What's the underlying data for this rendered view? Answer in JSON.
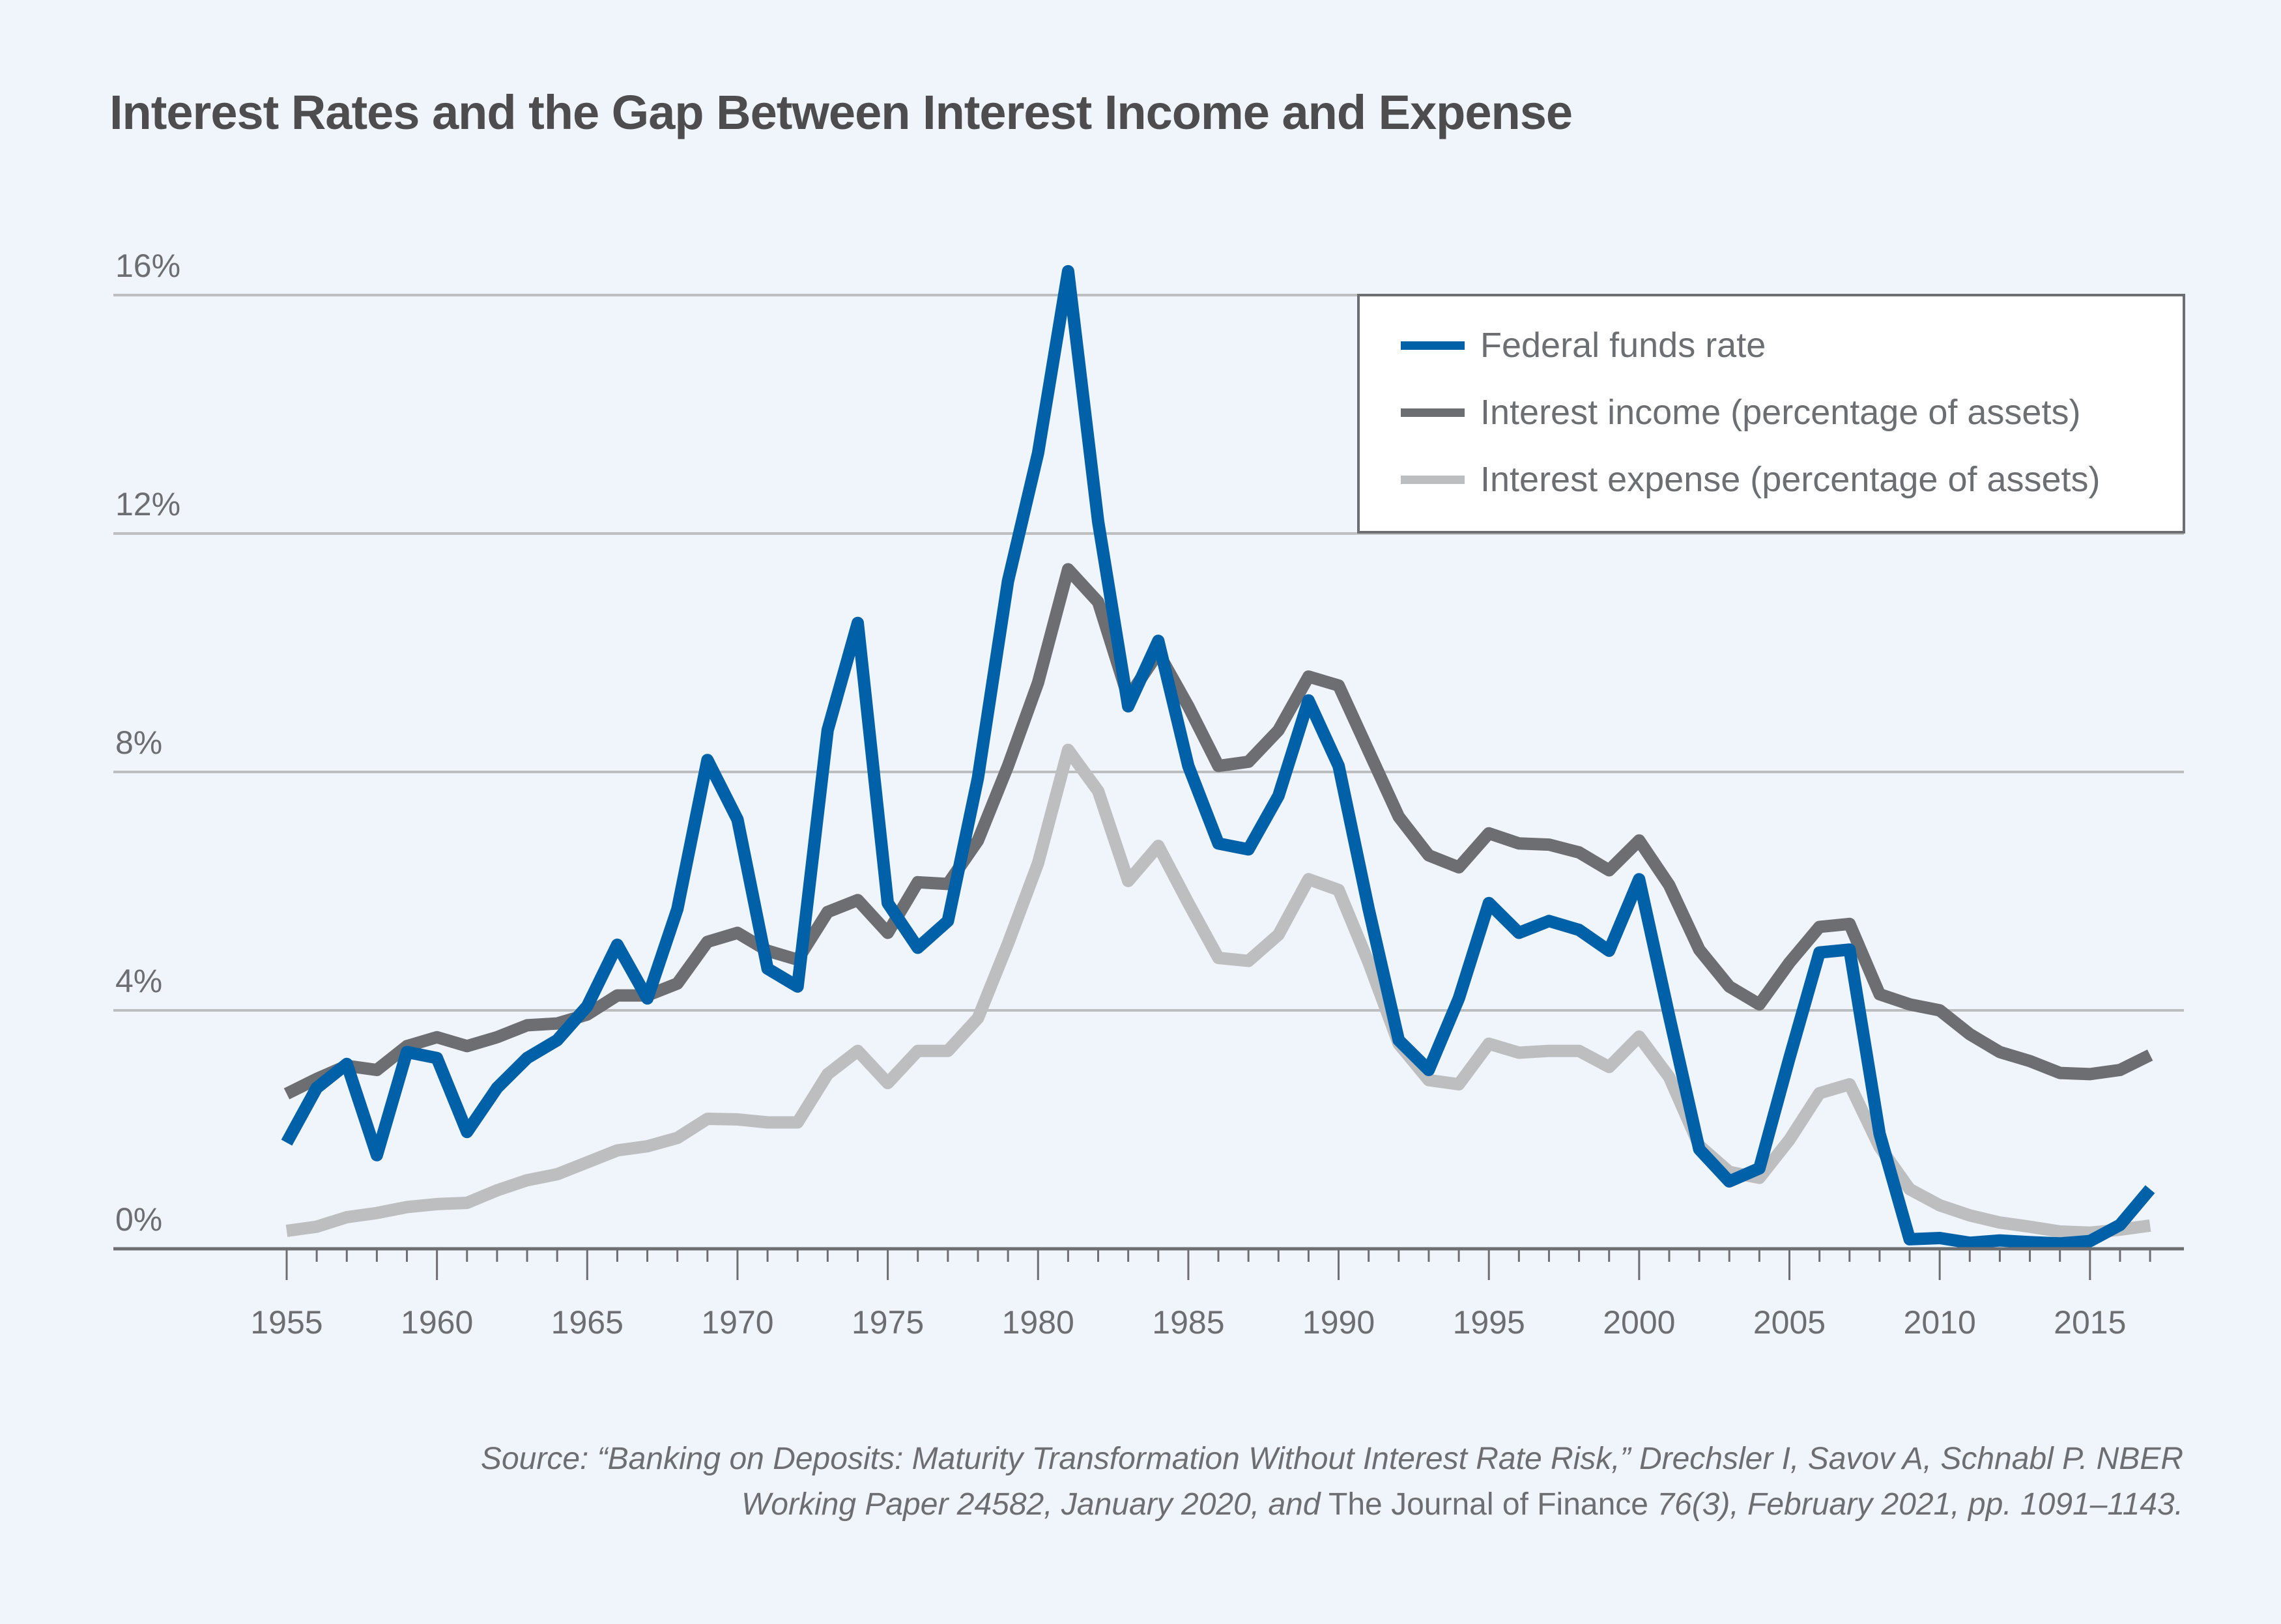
{
  "title": "Interest Rates and the Gap Between Interest Income and Expense",
  "source": {
    "line1": "Source: “Banking on Deposits: Maturity Transformation Without Interest Rate Risk,” Drechsler I, Savov A, Schnabl P. NBER",
    "line2_a": "Working Paper 24582, January 2020, ",
    "line2_and": "and",
    "line2_journal": " The Journal of Finance ",
    "line2_b": "76(3), February 2021, pp. 1091–1143."
  },
  "colors": {
    "background": "#EFF5FA",
    "federal_funds": "#0061A8",
    "income": "#6D6E71",
    "expense": "#BCBEC0",
    "gridline": "#BCBEC0",
    "axis": "#6D6E71",
    "text": "#6D6E71",
    "title": "#4D4D4F"
  },
  "chart_data": {
    "type": "line",
    "title": "Interest Rates and the Gap Between Interest Income and Expense",
    "xlabel": "",
    "ylabel": "",
    "xlim": [
      1955,
      2017
    ],
    "ylim": [
      0,
      16
    ],
    "grid": true,
    "legend_position": "top-right",
    "y_ticks": [
      0,
      4,
      8,
      12,
      16
    ],
    "y_tick_labels": [
      "0%",
      "4%",
      "8%",
      "12%",
      "16%"
    ],
    "x_ticks": [
      1955,
      1960,
      1965,
      1970,
      1975,
      1980,
      1985,
      1990,
      1995,
      2000,
      2005,
      2010,
      2015
    ],
    "x_tick_labels": [
      "1955",
      "1960",
      "1965",
      "1970",
      "1975",
      "1980",
      "1985",
      "1990",
      "1995",
      "2000",
      "2005",
      "2010",
      "2015"
    ],
    "x": [
      1955,
      1956,
      1957,
      1958,
      1959,
      1960,
      1961,
      1962,
      1963,
      1964,
      1965,
      1966,
      1967,
      1968,
      1969,
      1970,
      1971,
      1972,
      1973,
      1974,
      1975,
      1976,
      1977,
      1978,
      1979,
      1980,
      1981,
      1982,
      1983,
      1984,
      1985,
      1986,
      1987,
      1988,
      1989,
      1990,
      1991,
      1992,
      1993,
      1994,
      1995,
      1996,
      1997,
      1998,
      1999,
      2000,
      2001,
      2002,
      2003,
      2004,
      2005,
      2006,
      2007,
      2008,
      2009,
      2010,
      2011,
      2012,
      2013,
      2014,
      2015,
      2016,
      2017
    ],
    "series": [
      {
        "name": "Federal funds rate",
        "color": "#0061A8",
        "values": [
          1.78,
          2.7,
          3.1,
          1.57,
          3.3,
          3.2,
          1.96,
          2.7,
          3.2,
          3.5,
          4.07,
          5.1,
          4.2,
          5.7,
          8.2,
          7.2,
          4.7,
          4.4,
          8.7,
          10.5,
          5.8,
          5.05,
          5.5,
          7.9,
          11.2,
          13.35,
          16.4,
          12.2,
          9.1,
          10.2,
          8.1,
          6.8,
          6.7,
          7.6,
          9.2,
          8.1,
          5.7,
          3.5,
          3.0,
          4.2,
          5.8,
          5.3,
          5.5,
          5.35,
          5.0,
          6.2,
          3.9,
          1.67,
          1.13,
          1.35,
          3.2,
          4.97,
          5.02,
          1.93,
          0.16,
          0.18,
          0.1,
          0.14,
          0.11,
          0.09,
          0.13,
          0.4,
          1.0
        ]
      },
      {
        "name": "Interest income (percentage of assets)",
        "color": "#6D6E71",
        "values": [
          2.6,
          2.85,
          3.07,
          3.0,
          3.4,
          3.55,
          3.4,
          3.55,
          3.75,
          3.78,
          3.93,
          4.25,
          4.25,
          4.45,
          5.15,
          5.3,
          5.0,
          4.85,
          5.65,
          5.85,
          5.3,
          6.15,
          6.12,
          6.85,
          8.1,
          9.5,
          11.4,
          10.85,
          9.25,
          10.0,
          9.1,
          8.1,
          8.17,
          8.7,
          9.6,
          9.45,
          8.35,
          7.25,
          6.6,
          6.4,
          6.97,
          6.8,
          6.78,
          6.65,
          6.35,
          6.85,
          6.1,
          5.02,
          4.4,
          4.1,
          4.8,
          5.4,
          5.45,
          4.27,
          4.1,
          4.0,
          3.6,
          3.3,
          3.15,
          2.95,
          2.93,
          3.0,
          3.25
        ]
      },
      {
        "name": "Interest expense (percentage of assets)",
        "color": "#BCBEC0",
        "values": [
          0.3,
          0.37,
          0.53,
          0.6,
          0.7,
          0.75,
          0.77,
          0.98,
          1.15,
          1.25,
          1.45,
          1.65,
          1.72,
          1.86,
          2.18,
          2.17,
          2.12,
          2.12,
          2.93,
          3.32,
          2.78,
          3.32,
          3.32,
          3.87,
          5.12,
          6.47,
          8.37,
          7.68,
          6.17,
          6.76,
          5.8,
          4.88,
          4.83,
          5.27,
          6.2,
          6.02,
          4.8,
          3.44,
          2.83,
          2.76,
          3.44,
          3.29,
          3.32,
          3.32,
          3.05,
          3.56,
          2.88,
          1.73,
          1.29,
          1.19,
          1.83,
          2.61,
          2.76,
          1.71,
          1.0,
          0.73,
          0.56,
          0.44,
          0.37,
          0.29,
          0.27,
          0.32,
          0.39
        ]
      }
    ]
  }
}
